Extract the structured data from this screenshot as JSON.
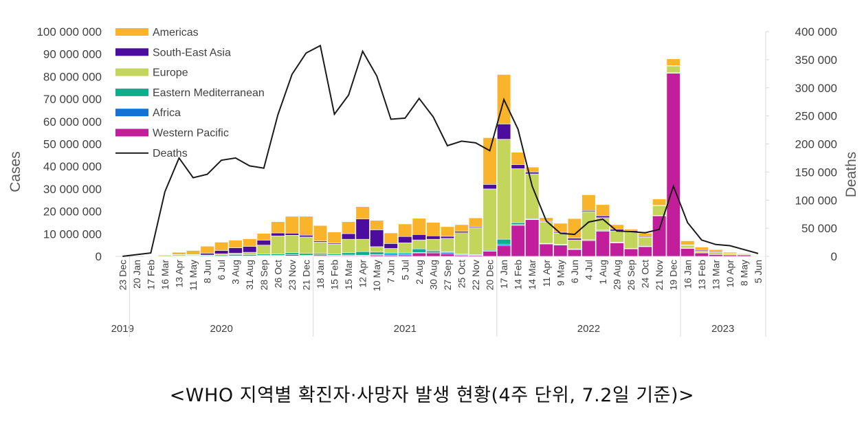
{
  "caption": "<WHO 지역별 확진자·사망자 발생 현황(4주 단위, 7.2일 기준)>",
  "chart_data": {
    "type": "bar",
    "subtype": "stacked bar with line on secondary axis",
    "ylabel": "Cases",
    "y2label": "Deaths",
    "ylim": [
      0,
      100000000
    ],
    "y2lim": [
      0,
      400000
    ],
    "yticks": [
      "0",
      "10 000 000",
      "20 000 000",
      "30 000 000",
      "40 000 000",
      "50 000 000",
      "60 000 000",
      "70 000 000",
      "80 000 000",
      "90 000 000",
      "100 000 000"
    ],
    "y2ticks": [
      "0",
      "50 000",
      "100 000",
      "150 000",
      "200 000",
      "250 000",
      "300 000",
      "350 000",
      "400 000"
    ],
    "legend_position": "top-left",
    "categories": [
      "23 Dec",
      "20 Jan",
      "17 Feb",
      "16 Mar",
      "13 Apr",
      "11 May",
      "8 Jun",
      "6 Jul",
      "3 Aug",
      "31 Aug",
      "28 Sep",
      "26 Oct",
      "23 Nov",
      "21 Dec",
      "18 Jan",
      "15 Feb",
      "15 Mar",
      "12 Apr",
      "10 May",
      "7 Jun",
      "5 Jul",
      "2 Aug",
      "30 Aug",
      "27 Sep",
      "25 Oct",
      "22 Nov",
      "20 Dec",
      "17 Jan",
      "14 Feb",
      "14 Mar",
      "11 Apr",
      "9 May",
      "6 Jun",
      "4 Jul",
      "1 Aug",
      "29 Aug",
      "26 Sep",
      "24 Oct",
      "21 Nov",
      "19 Dec",
      "16 Jan",
      "13 Feb",
      "13 Mar",
      "10 Apr",
      "8 May",
      "5 Jun"
    ],
    "years": [
      {
        "label": "2019",
        "start": 0,
        "end": 0
      },
      {
        "label": "2020",
        "start": 1,
        "end": 13
      },
      {
        "label": "2021",
        "start": 14,
        "end": 26
      },
      {
        "label": "2022",
        "start": 27,
        "end": 39
      },
      {
        "label": "2023",
        "start": 40,
        "end": 45
      }
    ],
    "series": [
      {
        "name": "Western Pacific",
        "color": "#C21E9C",
        "values": [
          0,
          0,
          0,
          0,
          0,
          0,
          0,
          0,
          0,
          0,
          0.2,
          0.2,
          0.2,
          0.2,
          0.3,
          0.3,
          0.3,
          0.3,
          0.4,
          0.5,
          0.6,
          1.5,
          1.5,
          1.0,
          0.5,
          0.4,
          2.3,
          4.8,
          13.8,
          16.3,
          5.5,
          5.0,
          3.0,
          7.0,
          11.2,
          6.0,
          3.3,
          4.3,
          18.0,
          81.5,
          3.5,
          1.5,
          0.8,
          0.6,
          0.6,
          0.1
        ]
      },
      {
        "name": "Africa",
        "color": "#1273D4",
        "values": [
          0,
          0,
          0,
          0,
          0,
          0,
          0,
          0.1,
          0.2,
          0.2,
          0.2,
          0.2,
          0.6,
          0.3,
          0.4,
          0.2,
          0.3,
          0.2,
          0.4,
          0.6,
          0.5,
          0.2,
          0.4,
          0.6,
          0.2,
          0.1,
          0.2,
          0.5,
          0.3,
          0.1,
          0.1,
          0.1,
          0.1,
          0.1,
          0.2,
          0.1,
          0.1,
          0.1,
          0.1,
          0.1,
          0.1,
          0.1,
          0,
          0,
          0,
          0
        ]
      },
      {
        "name": "Eastern Mediterranean",
        "color": "#0CAE8C",
        "values": [
          0,
          0,
          0,
          0,
          0.1,
          0.2,
          0.3,
          0.5,
          0.6,
          0.6,
          0.6,
          0.7,
          0.8,
          0.8,
          0.6,
          0.6,
          1.0,
          1.6,
          1.1,
          0.6,
          0.6,
          1.6,
          0.7,
          0.4,
          0.3,
          0.3,
          0.5,
          2.3,
          0.9,
          0.3,
          0.2,
          0.2,
          0.2,
          0.3,
          0.3,
          0.2,
          0.1,
          0.1,
          0.1,
          0.1,
          0.1,
          0,
          0,
          0,
          0,
          0
        ]
      },
      {
        "name": "Europe",
        "color": "#C3D55B",
        "values": [
          0,
          0,
          0,
          0.4,
          0.6,
          0.4,
          0.3,
          0.5,
          0.6,
          1.0,
          4.0,
          8.0,
          7.8,
          7.3,
          5.0,
          4.4,
          6.0,
          5.5,
          2.4,
          1.8,
          4.3,
          4.0,
          5.0,
          6.0,
          9.5,
          12.0,
          27.0,
          44.5,
          24.0,
          20.0,
          9.5,
          5.0,
          4.0,
          12.5,
          5.5,
          5.0,
          7.5,
          4.0,
          4.3,
          3.0,
          1.2,
          0.7,
          1.0,
          0.5,
          0.3,
          0.1
        ]
      },
      {
        "name": "South-East Asia",
        "color": "#4C0C9E",
        "values": [
          0,
          0,
          0,
          0,
          0.1,
          0.2,
          0.8,
          1.5,
          2.4,
          2.6,
          2.2,
          1.3,
          0.9,
          0.8,
          0.5,
          0.4,
          2.5,
          9.0,
          7.5,
          2.2,
          2.8,
          2.4,
          1.5,
          0.9,
          0.6,
          0.4,
          2.0,
          6.8,
          1.8,
          0.8,
          0.3,
          0.4,
          0.8,
          0.5,
          0.8,
          0.8,
          0.5,
          0.3,
          0.2,
          0.2,
          0.2,
          0.4,
          0.3,
          0.1,
          0.1,
          0
        ]
      },
      {
        "name": "Americas",
        "color": "#FAB42C",
        "values": [
          0,
          0,
          0.1,
          0.3,
          1.0,
          1.8,
          3.1,
          3.7,
          3.4,
          3.4,
          3.0,
          5.0,
          7.5,
          8.4,
          6.9,
          4.9,
          5.3,
          5.5,
          4.2,
          4.7,
          5.6,
          7.2,
          6.0,
          4.3,
          3.0,
          3.9,
          20.8,
          22.0,
          5.5,
          2.2,
          1.6,
          4.0,
          8.7,
          7.0,
          5.0,
          2.0,
          0.6,
          1.5,
          2.8,
          3.0,
          1.8,
          1.4,
          0.9,
          0.6,
          0.3,
          0.2
        ]
      }
    ],
    "series_units": "million cases",
    "deaths": {
      "name": "Deaths",
      "color": "#1a1a1a",
      "values": [
        0,
        3000,
        6000,
        115000,
        175000,
        140000,
        146000,
        171000,
        175000,
        161000,
        157000,
        252000,
        324000,
        362000,
        375000,
        253000,
        287000,
        365000,
        321000,
        244000,
        246000,
        281000,
        248000,
        197000,
        205000,
        202000,
        188000,
        279000,
        226000,
        125000,
        63000,
        41000,
        39000,
        61000,
        66000,
        45000,
        44000,
        42000,
        48000,
        125000,
        60000,
        29000,
        21000,
        19000,
        12000,
        5000
      ]
    },
    "legend": [
      "Americas",
      "South-East Asia",
      "Europe",
      "Eastern Mediterranean",
      "Africa",
      "Western Pacific",
      "Deaths"
    ]
  }
}
